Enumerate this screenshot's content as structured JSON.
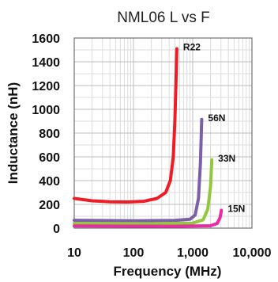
{
  "chart_data": {
    "type": "line",
    "title": "NML06 L vs F",
    "xlabel": "Frequency (MHz)",
    "ylabel": "Inductance (nH)",
    "x_scale": "log",
    "xlim": [
      10,
      10000
    ],
    "ylim": [
      0,
      1600
    ],
    "x_ticks": [
      10,
      100,
      1000,
      10000
    ],
    "x_tick_labels": [
      "10",
      "100",
      "1,000",
      "10,000"
    ],
    "y_ticks": [
      0,
      200,
      400,
      600,
      800,
      1000,
      1200,
      1400,
      1600
    ],
    "y_tick_labels": [
      "0",
      "200",
      "400",
      "600",
      "800",
      "1000",
      "1200",
      "1400",
      "1600"
    ],
    "grid": true,
    "legend": "none",
    "series": [
      {
        "name": "R22",
        "color": "#ee1c24",
        "points": [
          [
            10,
            250
          ],
          [
            20,
            230
          ],
          [
            40,
            222
          ],
          [
            80,
            220
          ],
          [
            150,
            226
          ],
          [
            250,
            250
          ],
          [
            350,
            300
          ],
          [
            420,
            400
          ],
          [
            470,
            600
          ],
          [
            500,
            900
          ],
          [
            520,
            1200
          ],
          [
            540,
            1510
          ]
        ]
      },
      {
        "name": "56N",
        "color": "#7b5fa8",
        "points": [
          [
            10,
            66
          ],
          [
            100,
            62
          ],
          [
            500,
            65
          ],
          [
            900,
            75
          ],
          [
            1100,
            110
          ],
          [
            1250,
            250
          ],
          [
            1350,
            550
          ],
          [
            1420,
            915
          ]
        ]
      },
      {
        "name": "33N",
        "color": "#92c83e",
        "points": [
          [
            10,
            40
          ],
          [
            200,
            37
          ],
          [
            1000,
            42
          ],
          [
            1500,
            70
          ],
          [
            1800,
            160
          ],
          [
            2000,
            350
          ],
          [
            2100,
            575
          ]
        ]
      },
      {
        "name": "15N",
        "color": "#ec2aa6",
        "points": [
          [
            10,
            18
          ],
          [
            500,
            16
          ],
          [
            2000,
            20
          ],
          [
            2600,
            40
          ],
          [
            2900,
            90
          ],
          [
            3050,
            150
          ]
        ]
      }
    ]
  }
}
